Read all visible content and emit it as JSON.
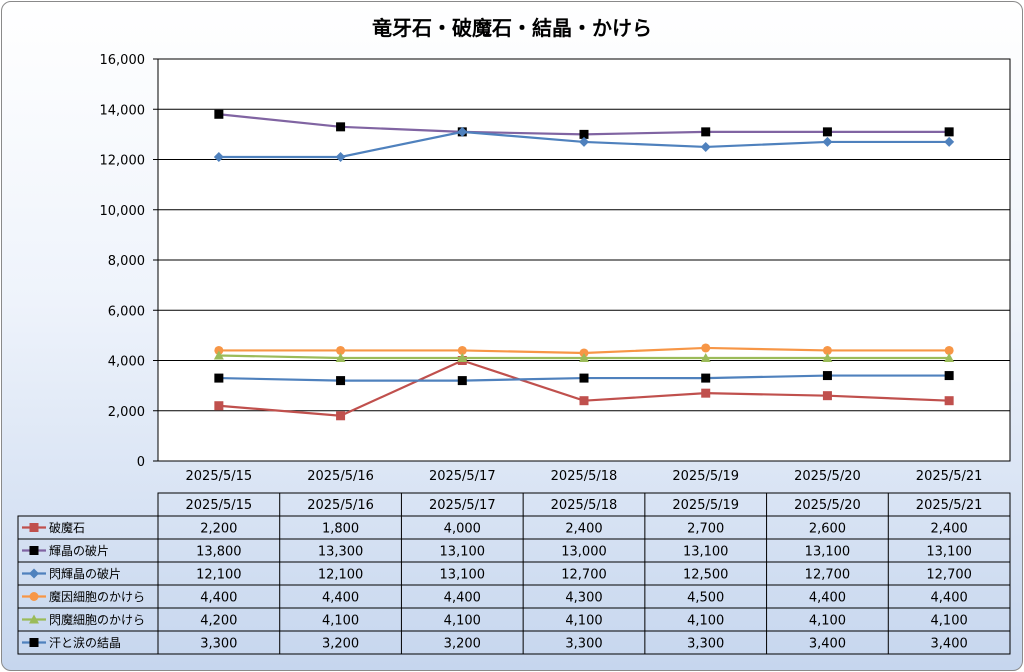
{
  "chart_data": {
    "type": "line",
    "title": "竜牙石・破魔石・結晶・かけら",
    "xlabel": "",
    "ylabel": "",
    "ylim": [
      0,
      16000
    ],
    "yticks": [
      0,
      2000,
      4000,
      6000,
      8000,
      10000,
      12000,
      14000,
      16000
    ],
    "ytick_labels": [
      "0",
      "2,000",
      "4,000",
      "6,000",
      "8,000",
      "10,000",
      "12,000",
      "14,000",
      "16,000"
    ],
    "grid": true,
    "legend": "data-table",
    "categories": [
      "2025/5/15",
      "2025/5/16",
      "2025/5/17",
      "2025/5/18",
      "2025/5/19",
      "2025/5/20",
      "2025/5/21"
    ],
    "series": [
      {
        "name": "破魔石",
        "color": "#c0504d",
        "marker": "square",
        "markerColor": "#c0504d",
        "values": [
          2200,
          1800,
          4000,
          2400,
          2700,
          2600,
          2400
        ],
        "labels": [
          "2,200",
          "1,800",
          "4,000",
          "2,400",
          "2,700",
          "2,600",
          "2,400"
        ]
      },
      {
        "name": "輝晶の破片",
        "color": "#8064a2",
        "marker": "square",
        "markerColor": "#000000",
        "values": [
          13800,
          13300,
          13100,
          13000,
          13100,
          13100,
          13100
        ],
        "labels": [
          "13,800",
          "13,300",
          "13,100",
          "13,000",
          "13,100",
          "13,100",
          "13,100"
        ]
      },
      {
        "name": "閃輝晶の破片",
        "color": "#4f81bd",
        "marker": "diamond",
        "markerColor": "#4f81bd",
        "values": [
          12100,
          12100,
          13100,
          12700,
          12500,
          12700,
          12700
        ],
        "labels": [
          "12,100",
          "12,100",
          "13,100",
          "12,700",
          "12,500",
          "12,700",
          "12,700"
        ]
      },
      {
        "name": "魔因細胞のかけら",
        "color": "#f79646",
        "marker": "circle",
        "markerColor": "#f79646",
        "values": [
          4400,
          4400,
          4400,
          4300,
          4500,
          4400,
          4400
        ],
        "labels": [
          "4,400",
          "4,400",
          "4,400",
          "4,300",
          "4,500",
          "4,400",
          "4,400"
        ]
      },
      {
        "name": "閃魔細胞のかけら",
        "color": "#9bbb59",
        "marker": "triangle",
        "markerColor": "#9bbb59",
        "values": [
          4200,
          4100,
          4100,
          4100,
          4100,
          4100,
          4100
        ],
        "labels": [
          "4,200",
          "4,100",
          "4,100",
          "4,100",
          "4,100",
          "4,100",
          "4,100"
        ]
      },
      {
        "name": "汗と涙の結晶",
        "color": "#4f81bd",
        "marker": "square",
        "markerColor": "#000000",
        "values": [
          3300,
          3200,
          3200,
          3300,
          3300,
          3400,
          3400
        ],
        "labels": [
          "3,300",
          "3,200",
          "3,200",
          "3,300",
          "3,300",
          "3,400",
          "3,400"
        ]
      }
    ]
  }
}
